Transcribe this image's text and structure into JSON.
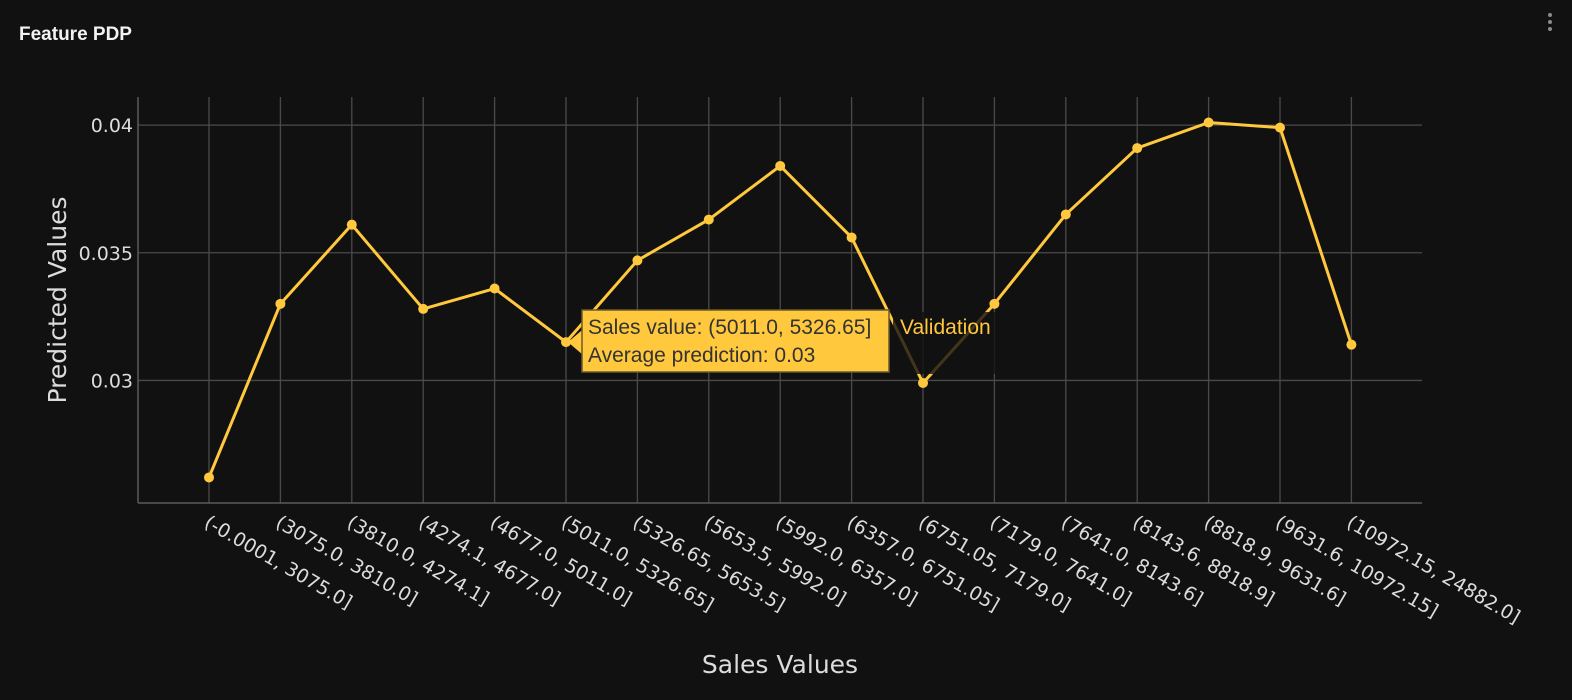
{
  "panel": {
    "title": "Feature PDP",
    "menu_icon": "kebab-menu-icon"
  },
  "chart_data": {
    "type": "line",
    "xlabel": "Sales Values",
    "ylabel": "Predicted Values",
    "ylim": [
      0.0252,
      0.0411
    ],
    "yticks": [
      0.03,
      0.035,
      0.04
    ],
    "ytick_labels": [
      "0.03",
      "0.035",
      "0.04"
    ],
    "grid": true,
    "categories": [
      "(-0.0001, 3075.0]",
      "(3075.0, 3810.0]",
      "(3810.0, 4274.1]",
      "(4274.1, 4677.0]",
      "(4677.0, 5011.0]",
      "(5011.0, 5326.65]",
      "(5326.65, 5653.5]",
      "(5653.5, 5992.0]",
      "(5992.0, 6357.0]",
      "(6357.0, 6751.05]",
      "(6751.05, 7179.0]",
      "(7179.0, 7641.0]",
      "(7641.0, 8143.6]",
      "(8143.6, 8818.9]",
      "(8818.9, 9631.6]",
      "(9631.6, 10972.15]",
      "(10972.15, 24882.0]"
    ],
    "series": [
      {
        "name": "Validation",
        "color": "#ffc83d",
        "values": [
          0.0262,
          0.033,
          0.0361,
          0.0328,
          0.0336,
          0.0315,
          0.0347,
          0.0363,
          0.0384,
          0.0356,
          0.0299,
          0.033,
          0.0365,
          0.0391,
          0.0401,
          0.0399,
          0.0314
        ]
      }
    ],
    "tooltip": {
      "index": 5,
      "line1": "Sales value: (5011.0, 5326.65]",
      "line2": "Average prediction: 0.03",
      "series_name": "Validation"
    }
  }
}
